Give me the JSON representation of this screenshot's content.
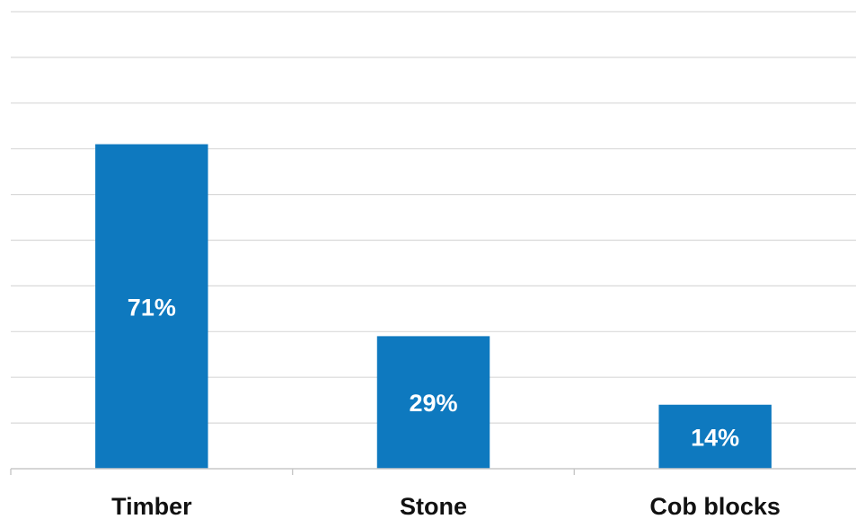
{
  "chart_data": {
    "type": "bar",
    "categories": [
      "Timber",
      "Stone",
      "Cob blocks"
    ],
    "values": [
      71,
      29,
      14
    ],
    "value_labels": [
      "71%",
      "29%",
      "14%"
    ],
    "ylim": [
      0,
      100
    ],
    "grid": true,
    "bar_color": "#0e79bf"
  }
}
